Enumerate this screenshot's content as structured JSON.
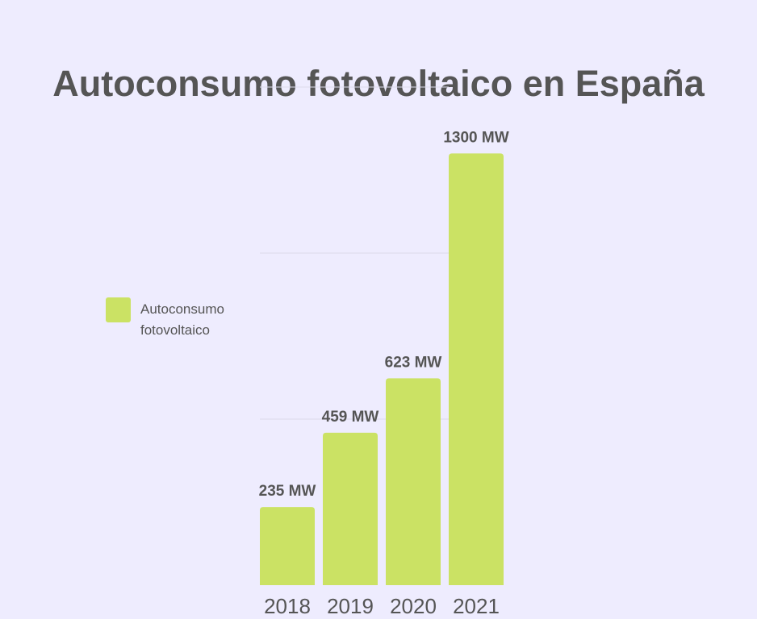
{
  "chart_data": {
    "type": "bar",
    "title": "Autoconsumo fotovoltaico en España",
    "categories": [
      "2018",
      "2019",
      "2020",
      "2021"
    ],
    "series": [
      {
        "name": "Autoconsumo fotovoltaico",
        "values": [
          235,
          459,
          623,
          1300
        ],
        "data_labels": [
          "235 MW",
          "459 MW",
          "623 MW",
          "1300 MW"
        ],
        "color": "#CBE264"
      }
    ],
    "ylim": [
      0,
      1500
    ],
    "grid": true,
    "legend_position": "left",
    "colors": {
      "background": "#EEECFE",
      "text": "#555555",
      "grid": "#DCDAEA"
    }
  }
}
